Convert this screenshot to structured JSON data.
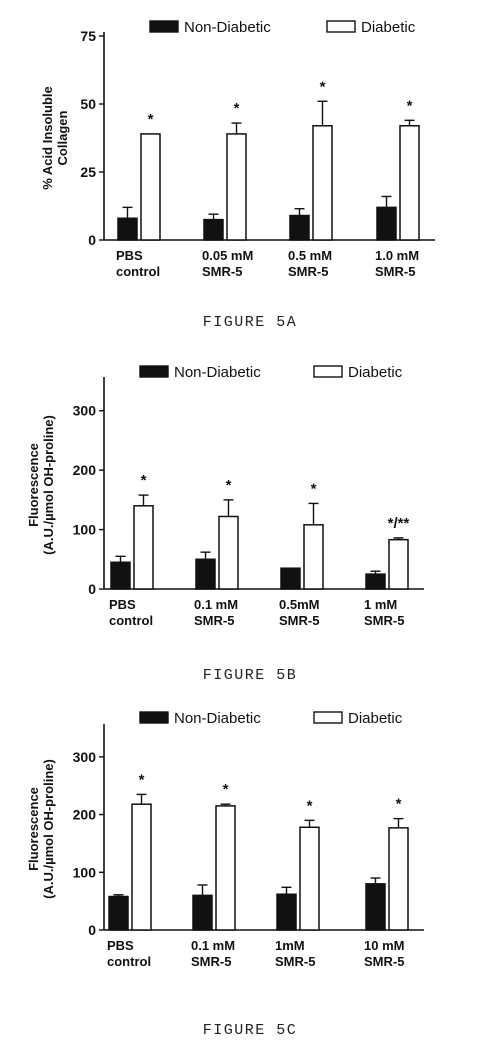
{
  "chart_data": [
    {
      "type": "bar",
      "caption": "FIGURE 5A",
      "ylabel": "% Acid Insoluble Collagen",
      "ylim": [
        0,
        75
      ],
      "yticks": [
        0,
        25,
        50,
        75
      ],
      "categories": [
        "PBS control",
        "0.05 mM SMR-5",
        "0.5 mM SMR-5",
        "1.0 mM SMR-5"
      ],
      "category_lines": [
        [
          "PBS",
          "control"
        ],
        [
          "0.05 mM",
          "SMR-5"
        ],
        [
          "0.5 mM",
          "SMR-5"
        ],
        [
          "1.0 mM",
          "SMR-5"
        ]
      ],
      "series": [
        {
          "name": "Non-Diabetic",
          "color": "#111111",
          "values": [
            8,
            7.5,
            9,
            12
          ],
          "errors": [
            4,
            2,
            2.5,
            4
          ]
        },
        {
          "name": "Diabetic",
          "color": "#ffffff",
          "values": [
            39,
            39,
            42,
            42
          ],
          "errors": [
            0,
            4,
            9,
            2
          ]
        }
      ],
      "annotations": [
        "*",
        "*",
        "*",
        "*"
      ],
      "legend": "top"
    },
    {
      "type": "bar",
      "caption": "FIGURE 5B",
      "ylabel": "Fluorescence (A.U./µmol OH-proline)",
      "ylim": [
        0,
        350
      ],
      "yticks": [
        0,
        100,
        200,
        300
      ],
      "categories": [
        "PBS control",
        "0.1 mM SMR-5",
        "0.5mM SMR-5",
        "1 mM SMR-5"
      ],
      "category_lines": [
        [
          "PBS",
          "control"
        ],
        [
          "0.1 mM",
          "SMR-5"
        ],
        [
          "0.5mM",
          "SMR-5"
        ],
        [
          "1 mM",
          "SMR-5"
        ]
      ],
      "series": [
        {
          "name": "Non-Diabetic",
          "color": "#111111",
          "values": [
            45,
            50,
            35,
            25
          ],
          "errors": [
            10,
            12,
            0,
            5
          ]
        },
        {
          "name": "Diabetic",
          "color": "#ffffff",
          "values": [
            140,
            122,
            108,
            83
          ],
          "errors": [
            18,
            28,
            36,
            3
          ]
        }
      ],
      "annotations": [
        "*",
        "*",
        "*",
        "*/**"
      ],
      "legend": "top"
    },
    {
      "type": "bar",
      "caption": "FIGURE 5C",
      "ylabel": "Fluorescence (A.U./µmol OH-proline)",
      "ylim": [
        0,
        350
      ],
      "yticks": [
        0,
        100,
        200,
        300
      ],
      "categories": [
        "PBS control",
        "0.1 mM SMR-5",
        "1mM SMR-5",
        "10 mM SMR-5"
      ],
      "category_lines": [
        [
          "PBS",
          "control"
        ],
        [
          "0.1 mM",
          "SMR-5"
        ],
        [
          "1mM",
          "SMR-5"
        ],
        [
          "10 mM",
          "SMR-5"
        ]
      ],
      "series": [
        {
          "name": "Non-Diabetic",
          "color": "#111111",
          "values": [
            58,
            60,
            62,
            80
          ],
          "errors": [
            3,
            18,
            12,
            10
          ]
        },
        {
          "name": "Diabetic",
          "color": "#ffffff",
          "values": [
            218,
            215,
            178,
            177
          ],
          "errors": [
            17,
            3,
            12,
            16
          ]
        }
      ],
      "annotations": [
        "*",
        "*",
        "*",
        "*"
      ],
      "legend": "top"
    }
  ]
}
